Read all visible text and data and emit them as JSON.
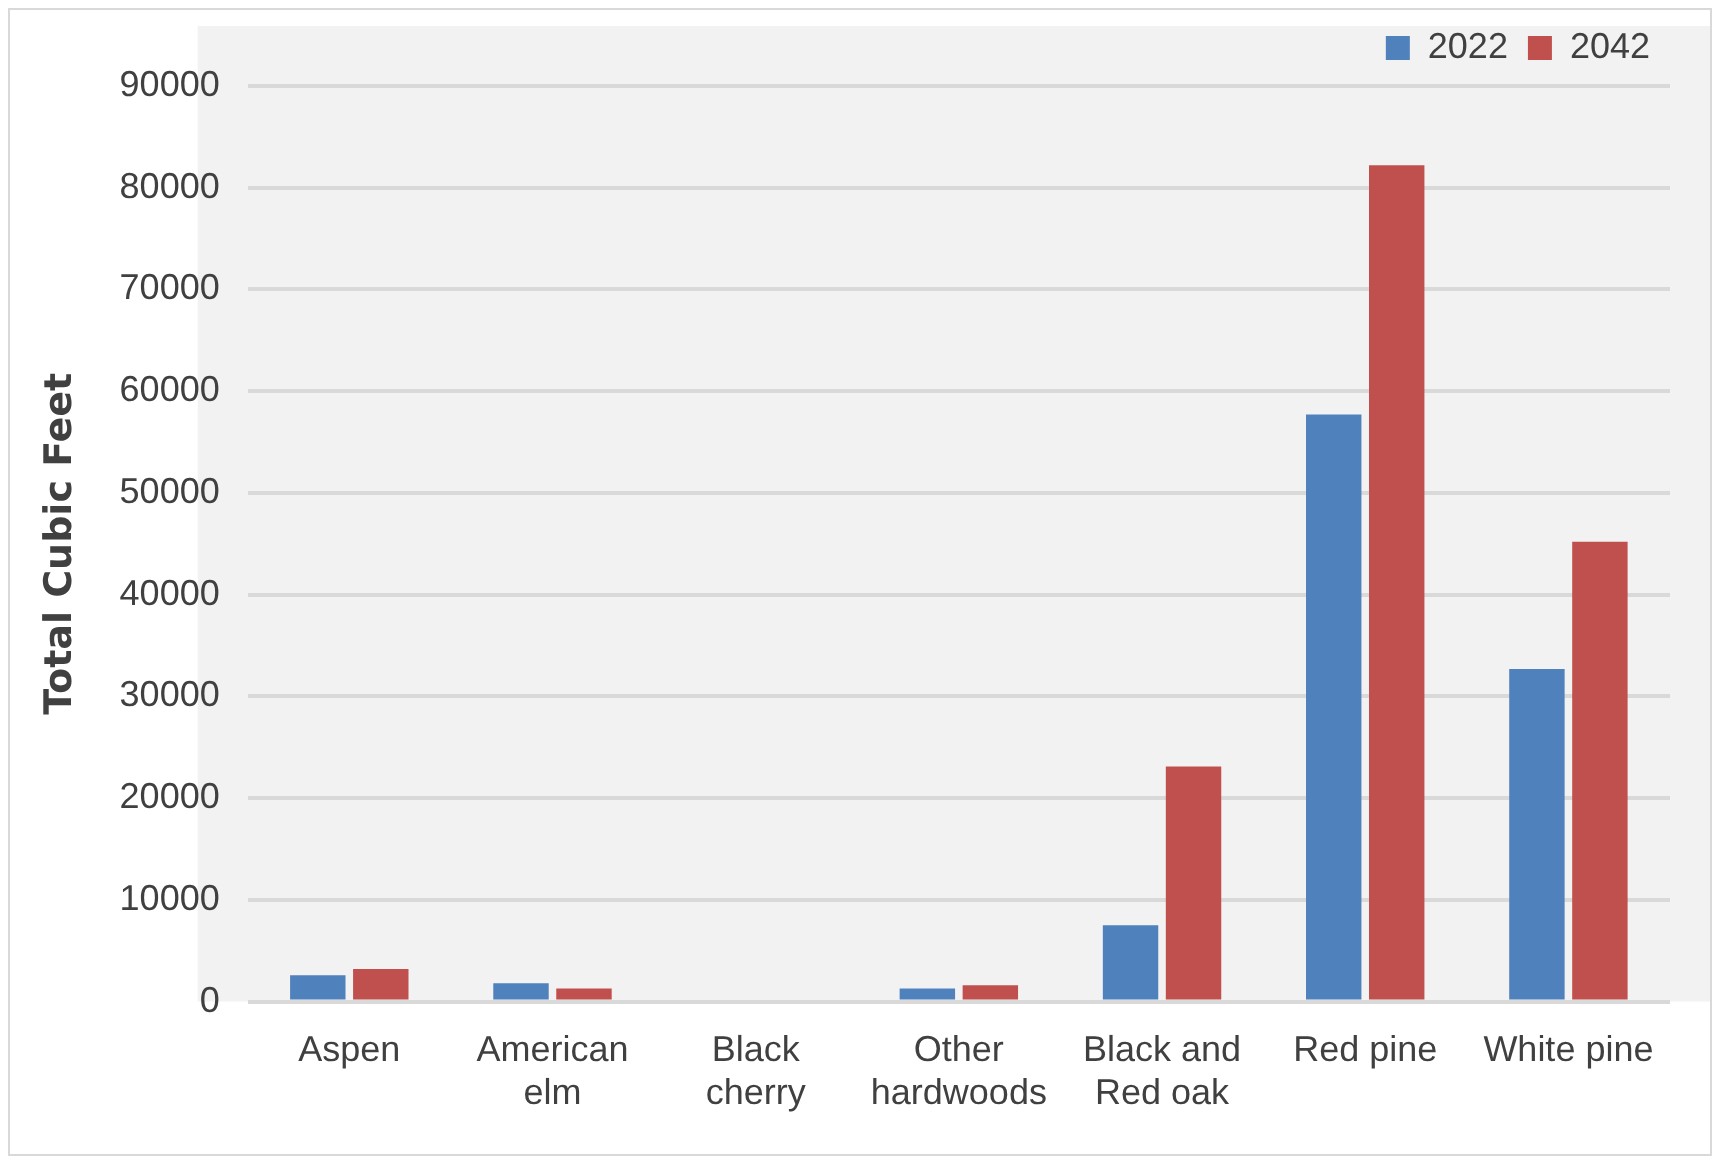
{
  "chart_data": {
    "type": "bar",
    "ylabel": "Total Cubic Feet",
    "categories": [
      "Aspen",
      "American elm",
      "Black cherry",
      "Other hardwoods",
      "Black and Red oak",
      "Red pine",
      "White pine"
    ],
    "series": [
      {
        "name": "2022",
        "color": "#4f81bd",
        "values": [
          2600,
          1800,
          0,
          1300,
          7500,
          57700,
          32700
        ]
      },
      {
        "name": "2042",
        "color": "#c0504d",
        "values": [
          3200,
          1300,
          0,
          1600,
          23100,
          82200,
          45200
        ]
      }
    ],
    "ylim": [
      0,
      90000
    ],
    "yticks": [
      0,
      10000,
      20000,
      30000,
      40000,
      50000,
      60000,
      70000,
      80000,
      90000
    ],
    "grid": "y",
    "legend": "top right"
  }
}
